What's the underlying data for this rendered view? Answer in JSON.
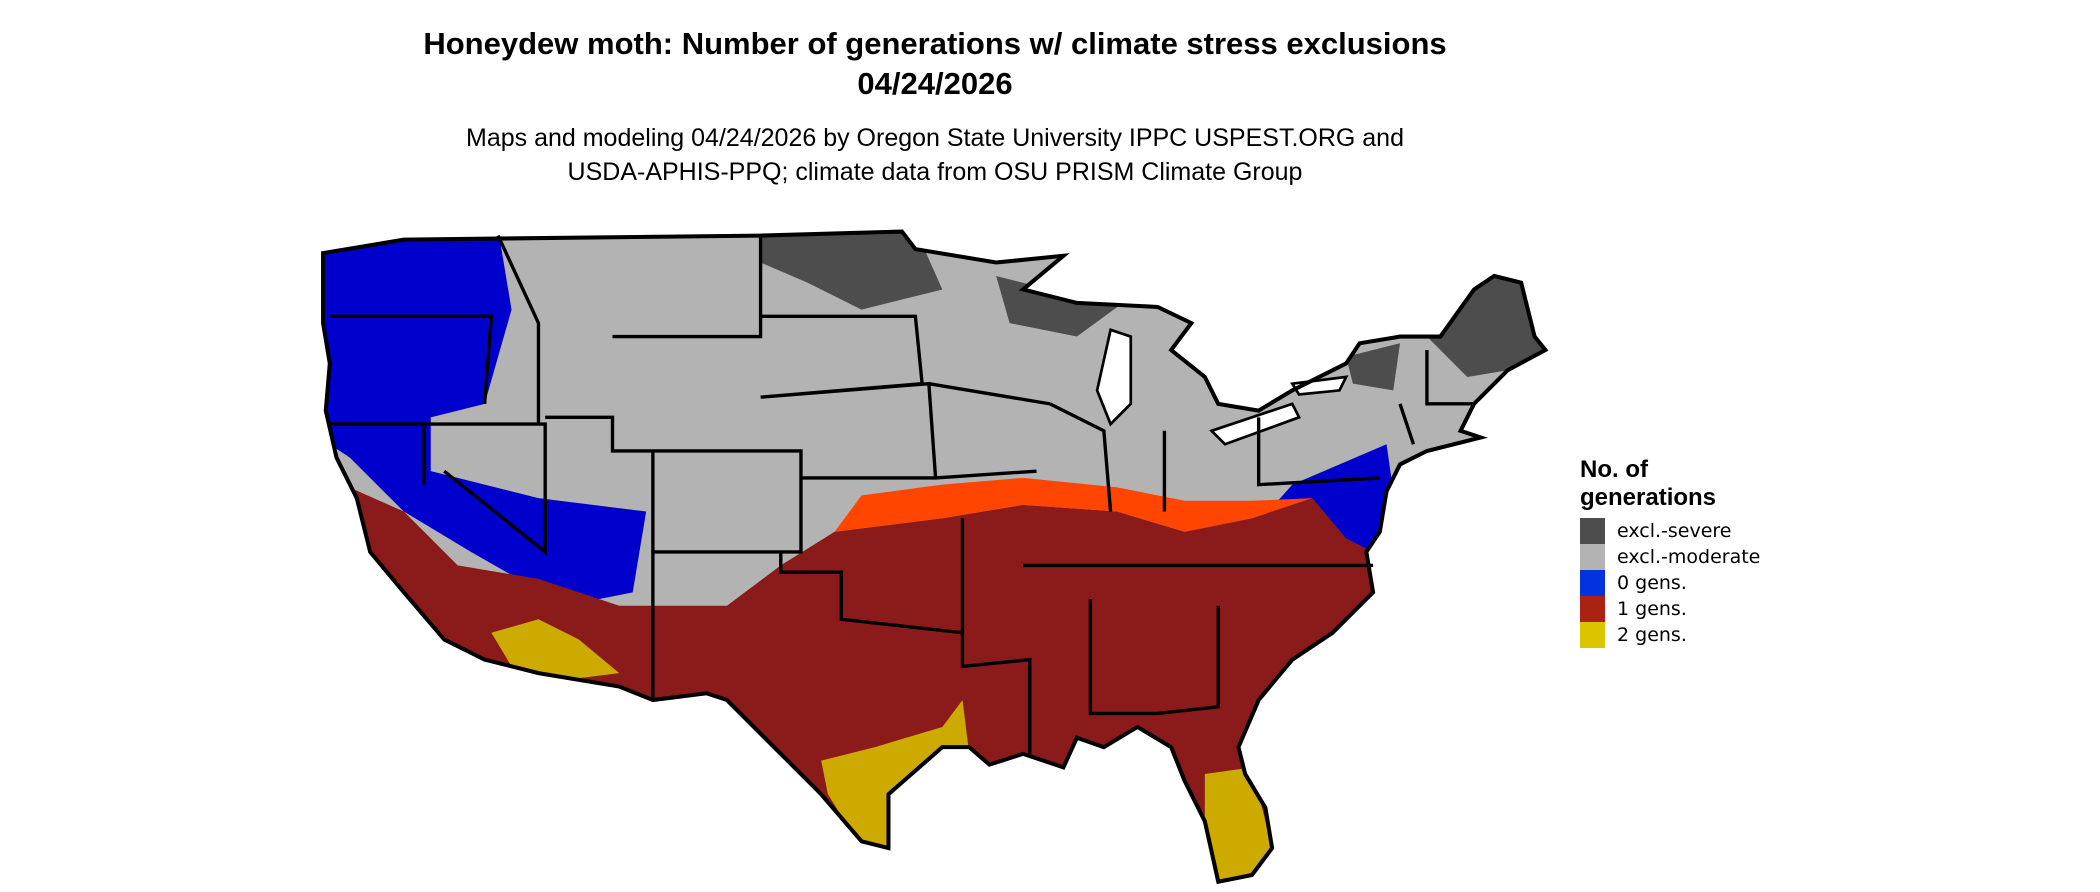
{
  "title": {
    "line1": "Honeydew moth: Number of generations w/ climate stress exclusions",
    "line2": "04/24/2026"
  },
  "subtitle": {
    "line1": "Maps and modeling 04/24/2026 by Oregon State University IPPC USPEST.ORG and",
    "line2": "USDA-APHIS-PPQ; climate data from OSU PRISM Climate Group"
  },
  "map": {
    "region": "Contiguous United States",
    "colors": {
      "excl_severe": "#4d4d4d",
      "excl_moderate": "#b3b3b3",
      "gens_0": "#0000cc",
      "gens_1": "#8b1a1a",
      "gens_1_edge": "#ff4500",
      "gens_2": "#ccaa00",
      "border": "#000000"
    }
  },
  "legend": {
    "title_line1": "No. of",
    "title_line2": "generations",
    "items": [
      {
        "label": "excl.-severe",
        "color": "#4d4d4d"
      },
      {
        "label": "excl.-moderate",
        "color": "#b3b3b3"
      },
      {
        "label": "0 gens.",
        "color": "#0033dd"
      },
      {
        "label": "1 gens.",
        "color": "#aa2211"
      },
      {
        "label": "2 gens.",
        "color": "#ddc400"
      }
    ]
  }
}
